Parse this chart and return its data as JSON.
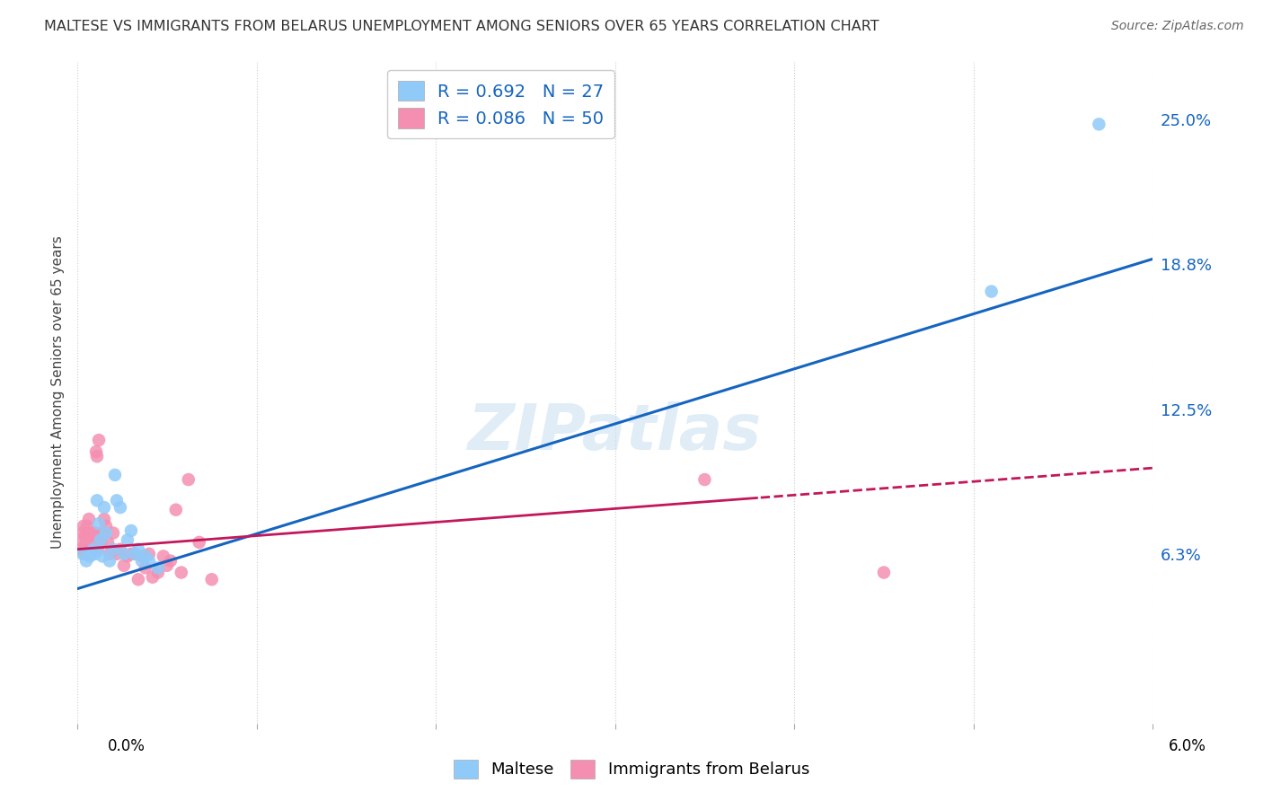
{
  "title": "MALTESE VS IMMIGRANTS FROM BELARUS UNEMPLOYMENT AMONG SENIORS OVER 65 YEARS CORRELATION CHART",
  "source": "Source: ZipAtlas.com",
  "ylabel": "Unemployment Among Seniors over 65 years",
  "y_ticks": [
    "6.3%",
    "12.5%",
    "18.8%",
    "25.0%"
  ],
  "y_tick_vals": [
    0.063,
    0.125,
    0.188,
    0.25
  ],
  "x_lim": [
    0.0,
    0.06
  ],
  "y_lim": [
    -0.01,
    0.275
  ],
  "maltese_color": "#90CAF9",
  "belarus_color": "#F48FB1",
  "maltese_line_color": "#1565C0",
  "belarus_line_color": "#C2185B",
  "watermark": "ZIPatlas",
  "maltese_scatter_x": [
    0.0003,
    0.0005,
    0.0007,
    0.0009,
    0.001,
    0.0011,
    0.0012,
    0.0013,
    0.0014,
    0.0015,
    0.0016,
    0.0018,
    0.002,
    0.0021,
    0.0022,
    0.0024,
    0.0026,
    0.0028,
    0.003,
    0.0032,
    0.0034,
    0.0036,
    0.0038,
    0.004,
    0.0045,
    0.051,
    0.057
  ],
  "maltese_scatter_y": [
    0.063,
    0.06,
    0.062,
    0.065,
    0.063,
    0.086,
    0.076,
    0.069,
    0.062,
    0.083,
    0.072,
    0.06,
    0.065,
    0.097,
    0.086,
    0.083,
    0.063,
    0.069,
    0.073,
    0.063,
    0.065,
    0.06,
    0.062,
    0.06,
    0.057,
    0.176,
    0.248
  ],
  "belarus_scatter_x": [
    0.0002,
    0.00025,
    0.0003,
    0.00035,
    0.0004,
    0.00045,
    0.0005,
    0.00055,
    0.0006,
    0.00065,
    0.0007,
    0.00075,
    0.0008,
    0.00085,
    0.0009,
    0.00095,
    0.001,
    0.00105,
    0.0011,
    0.00115,
    0.0012,
    0.0013,
    0.0014,
    0.0015,
    0.0016,
    0.0017,
    0.0018,
    0.002,
    0.0022,
    0.0024,
    0.0026,
    0.0028,
    0.003,
    0.0032,
    0.0034,
    0.0036,
    0.0038,
    0.004,
    0.0042,
    0.0045,
    0.0048,
    0.005,
    0.0052,
    0.0055,
    0.0058,
    0.0062,
    0.0068,
    0.0075,
    0.035,
    0.045
  ],
  "belarus_scatter_y": [
    0.065,
    0.068,
    0.072,
    0.075,
    0.063,
    0.071,
    0.068,
    0.075,
    0.072,
    0.078,
    0.065,
    0.071,
    0.063,
    0.072,
    0.065,
    0.068,
    0.072,
    0.107,
    0.105,
    0.065,
    0.112,
    0.068,
    0.072,
    0.078,
    0.075,
    0.068,
    0.063,
    0.072,
    0.063,
    0.065,
    0.058,
    0.062,
    0.063,
    0.063,
    0.052,
    0.062,
    0.057,
    0.063,
    0.053,
    0.055,
    0.062,
    0.058,
    0.06,
    0.082,
    0.055,
    0.095,
    0.068,
    0.052,
    0.095,
    0.055
  ],
  "maltese_line_x0": 0.0,
  "maltese_line_y0": 0.048,
  "maltese_line_x1": 0.06,
  "maltese_line_y1": 0.19,
  "belarus_line_x0": 0.0,
  "belarus_line_y0": 0.065,
  "belarus_line_x1": 0.06,
  "belarus_line_y1": 0.1
}
